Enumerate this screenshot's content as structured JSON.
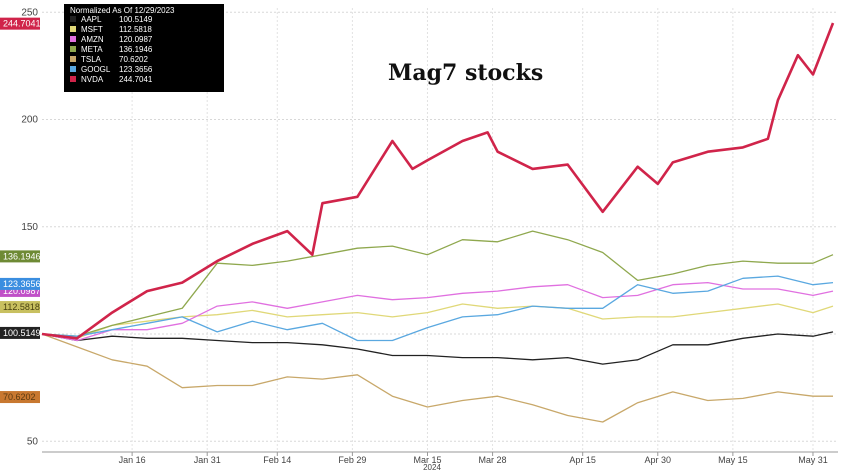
{
  "chart_data": {
    "type": "line",
    "title": "Mag7 stocks",
    "xlabel": "2024",
    "ylabel": "",
    "ylim": [
      45,
      252
    ],
    "yticks": [
      50,
      100,
      150,
      200,
      250
    ],
    "x_tick_labels": [
      {
        "label": "Jan 16",
        "date": "2024-01-16"
      },
      {
        "label": "Jan 31",
        "date": "2024-01-31"
      },
      {
        "label": "Feb 14",
        "date": "2024-02-14"
      },
      {
        "label": "Feb 29",
        "date": "2024-02-29"
      },
      {
        "label": "Mar 15",
        "date": "2024-03-15"
      },
      {
        "label": "Mar 28",
        "date": "2024-03-28"
      },
      {
        "label": "Apr 15",
        "date": "2024-04-15"
      },
      {
        "label": "Apr 30",
        "date": "2024-04-30"
      },
      {
        "label": "May 15",
        "date": "2024-05-15"
      },
      {
        "label": "May 31",
        "date": "2024-05-31"
      }
    ],
    "xlim": [
      "2023-12-29",
      "2024-06-05"
    ],
    "legend": {
      "title": "Normalized As Of 12/29/2023",
      "position": "top-left",
      "background": "#000000"
    },
    "series": [
      {
        "name": "AAPL",
        "last_value": "100.5149",
        "color": "#222222",
        "points": [
          [
            "2023-12-29",
            100
          ],
          [
            "2024-01-05",
            97
          ],
          [
            "2024-01-12",
            99
          ],
          [
            "2024-01-19",
            98
          ],
          [
            "2024-01-26",
            98
          ],
          [
            "2024-02-02",
            97
          ],
          [
            "2024-02-09",
            96
          ],
          [
            "2024-02-16",
            96
          ],
          [
            "2024-02-23",
            95
          ],
          [
            "2024-03-01",
            93
          ],
          [
            "2024-03-08",
            90
          ],
          [
            "2024-03-15",
            90
          ],
          [
            "2024-03-22",
            89
          ],
          [
            "2024-03-29",
            89
          ],
          [
            "2024-04-05",
            88
          ],
          [
            "2024-04-12",
            89
          ],
          [
            "2024-04-19",
            86
          ],
          [
            "2024-04-26",
            88
          ],
          [
            "2024-05-03",
            95
          ],
          [
            "2024-05-10",
            95
          ],
          [
            "2024-05-17",
            98
          ],
          [
            "2024-05-24",
            100
          ],
          [
            "2024-05-31",
            99
          ],
          [
            "2024-06-04",
            101
          ]
        ]
      },
      {
        "name": "MSFT",
        "last_value": "112.5818",
        "color": "#e0d878",
        "points": [
          [
            "2023-12-29",
            100
          ],
          [
            "2024-01-05",
            98
          ],
          [
            "2024-01-12",
            104
          ],
          [
            "2024-01-19",
            106
          ],
          [
            "2024-01-26",
            108
          ],
          [
            "2024-02-02",
            109
          ],
          [
            "2024-02-09",
            111
          ],
          [
            "2024-02-16",
            108
          ],
          [
            "2024-02-23",
            109
          ],
          [
            "2024-03-01",
            110
          ],
          [
            "2024-03-08",
            108
          ],
          [
            "2024-03-15",
            110
          ],
          [
            "2024-03-22",
            114
          ],
          [
            "2024-03-29",
            112
          ],
          [
            "2024-04-05",
            113
          ],
          [
            "2024-04-12",
            112
          ],
          [
            "2024-04-19",
            107
          ],
          [
            "2024-04-26",
            108
          ],
          [
            "2024-05-03",
            108
          ],
          [
            "2024-05-10",
            110
          ],
          [
            "2024-05-17",
            112
          ],
          [
            "2024-05-24",
            114
          ],
          [
            "2024-05-31",
            110
          ],
          [
            "2024-06-04",
            113
          ]
        ]
      },
      {
        "name": "AMZN",
        "last_value": "120.0987",
        "color": "#e070e0",
        "points": [
          [
            "2023-12-29",
            100
          ],
          [
            "2024-01-05",
            97
          ],
          [
            "2024-01-12",
            102
          ],
          [
            "2024-01-19",
            102
          ],
          [
            "2024-01-26",
            105
          ],
          [
            "2024-02-02",
            113
          ],
          [
            "2024-02-09",
            115
          ],
          [
            "2024-02-16",
            112
          ],
          [
            "2024-02-23",
            115
          ],
          [
            "2024-03-01",
            118
          ],
          [
            "2024-03-08",
            116
          ],
          [
            "2024-03-15",
            117
          ],
          [
            "2024-03-22",
            119
          ],
          [
            "2024-03-29",
            120
          ],
          [
            "2024-04-05",
            122
          ],
          [
            "2024-04-12",
            123
          ],
          [
            "2024-04-19",
            117
          ],
          [
            "2024-04-26",
            118
          ],
          [
            "2024-05-03",
            123
          ],
          [
            "2024-05-10",
            124
          ],
          [
            "2024-05-17",
            121
          ],
          [
            "2024-05-24",
            121
          ],
          [
            "2024-05-31",
            118
          ],
          [
            "2024-06-04",
            120
          ]
        ]
      },
      {
        "name": "META",
        "last_value": "136.1946",
        "color": "#8fa84e",
        "points": [
          [
            "2023-12-29",
            100
          ],
          [
            "2024-01-05",
            99
          ],
          [
            "2024-01-12",
            104
          ],
          [
            "2024-01-19",
            108
          ],
          [
            "2024-01-26",
            112
          ],
          [
            "2024-02-02",
            133
          ],
          [
            "2024-02-09",
            132
          ],
          [
            "2024-02-16",
            134
          ],
          [
            "2024-02-23",
            137
          ],
          [
            "2024-03-01",
            140
          ],
          [
            "2024-03-08",
            141
          ],
          [
            "2024-03-15",
            137
          ],
          [
            "2024-03-22",
            144
          ],
          [
            "2024-03-29",
            143
          ],
          [
            "2024-04-05",
            148
          ],
          [
            "2024-04-12",
            144
          ],
          [
            "2024-04-19",
            138
          ],
          [
            "2024-04-26",
            125
          ],
          [
            "2024-05-03",
            128
          ],
          [
            "2024-05-10",
            132
          ],
          [
            "2024-05-17",
            134
          ],
          [
            "2024-05-24",
            133
          ],
          [
            "2024-05-31",
            133
          ],
          [
            "2024-06-04",
            137
          ]
        ]
      },
      {
        "name": "TSLA",
        "last_value": "70.6202",
        "color": "#c8a86a",
        "points": [
          [
            "2023-12-29",
            100
          ],
          [
            "2024-01-05",
            94
          ],
          [
            "2024-01-12",
            88
          ],
          [
            "2024-01-19",
            85
          ],
          [
            "2024-01-26",
            75
          ],
          [
            "2024-02-02",
            76
          ],
          [
            "2024-02-09",
            76
          ],
          [
            "2024-02-16",
            80
          ],
          [
            "2024-02-23",
            79
          ],
          [
            "2024-03-01",
            81
          ],
          [
            "2024-03-08",
            71
          ],
          [
            "2024-03-15",
            66
          ],
          [
            "2024-03-22",
            69
          ],
          [
            "2024-03-29",
            71
          ],
          [
            "2024-04-05",
            67
          ],
          [
            "2024-04-12",
            62
          ],
          [
            "2024-04-19",
            59
          ],
          [
            "2024-04-26",
            68
          ],
          [
            "2024-05-03",
            73
          ],
          [
            "2024-05-10",
            69
          ],
          [
            "2024-05-17",
            70
          ],
          [
            "2024-05-24",
            73
          ],
          [
            "2024-05-31",
            71
          ],
          [
            "2024-06-04",
            71
          ]
        ]
      },
      {
        "name": "GOOGL",
        "last_value": "123.3656",
        "color": "#5aa8e0",
        "points": [
          [
            "2023-12-29",
            100
          ],
          [
            "2024-01-05",
            99
          ],
          [
            "2024-01-12",
            102
          ],
          [
            "2024-01-19",
            105
          ],
          [
            "2024-01-26",
            108
          ],
          [
            "2024-02-02",
            101
          ],
          [
            "2024-02-09",
            106
          ],
          [
            "2024-02-16",
            102
          ],
          [
            "2024-02-23",
            105
          ],
          [
            "2024-03-01",
            97
          ],
          [
            "2024-03-08",
            97
          ],
          [
            "2024-03-15",
            103
          ],
          [
            "2024-03-22",
            108
          ],
          [
            "2024-03-29",
            109
          ],
          [
            "2024-04-05",
            113
          ],
          [
            "2024-04-12",
            112
          ],
          [
            "2024-04-19",
            112
          ],
          [
            "2024-04-26",
            123
          ],
          [
            "2024-05-03",
            119
          ],
          [
            "2024-05-10",
            120
          ],
          [
            "2024-05-17",
            126
          ],
          [
            "2024-05-24",
            127
          ],
          [
            "2024-05-31",
            123
          ],
          [
            "2024-06-04",
            124
          ]
        ]
      },
      {
        "name": "NVDA",
        "last_value": "244.7041",
        "color": "#d0244a",
        "points": [
          [
            "2023-12-29",
            100
          ],
          [
            "2024-01-05",
            98
          ],
          [
            "2024-01-12",
            110
          ],
          [
            "2024-01-19",
            120
          ],
          [
            "2024-01-26",
            124
          ],
          [
            "2024-02-02",
            134
          ],
          [
            "2024-02-09",
            142
          ],
          [
            "2024-02-16",
            148
          ],
          [
            "2024-02-21",
            137
          ],
          [
            "2024-02-23",
            161
          ],
          [
            "2024-03-01",
            164
          ],
          [
            "2024-03-08",
            190
          ],
          [
            "2024-03-12",
            177
          ],
          [
            "2024-03-15",
            181
          ],
          [
            "2024-03-22",
            190
          ],
          [
            "2024-03-27",
            194
          ],
          [
            "2024-03-29",
            185
          ],
          [
            "2024-04-05",
            177
          ],
          [
            "2024-04-12",
            179
          ],
          [
            "2024-04-19",
            157
          ],
          [
            "2024-04-26",
            178
          ],
          [
            "2024-04-30",
            170
          ],
          [
            "2024-05-03",
            180
          ],
          [
            "2024-05-10",
            185
          ],
          [
            "2024-05-17",
            187
          ],
          [
            "2024-05-22",
            191
          ],
          [
            "2024-05-24",
            209
          ],
          [
            "2024-05-28",
            230
          ],
          [
            "2024-05-31",
            221
          ],
          [
            "2024-06-04",
            245
          ]
        ]
      }
    ]
  }
}
